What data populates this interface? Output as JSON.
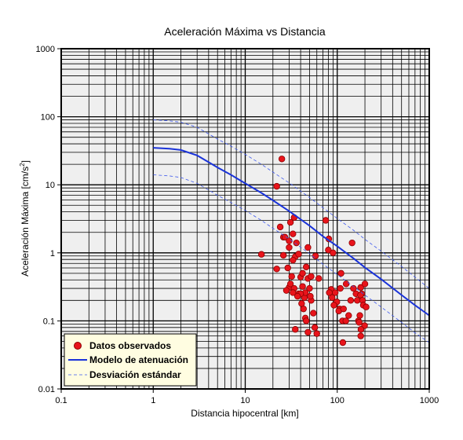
{
  "chart_data": {
    "type": "scatter",
    "title": "Aceleración Máxima vs Distancia",
    "xlabel": "Distancia hipocentral [km]",
    "ylabel": "Aceleración Máxima [cm/s",
    "ylabel_sup": "2",
    "ylabel_end": "]",
    "xscale": "log",
    "yscale": "log",
    "xlim": [
      0.1,
      1000
    ],
    "ylim": [
      0.01,
      1000
    ],
    "grid": true,
    "legend_position": "bottom-left",
    "x_tick_labels": [
      "0.1",
      "1",
      "10",
      "100",
      "1000"
    ],
    "y_tick_labels": [
      "0.01",
      "0.1",
      "1",
      "10",
      "100",
      "1000"
    ],
    "colors": {
      "plot_background": "#efefef",
      "grid": "#000000",
      "points": "#e8141b",
      "point_edge": "#8b0000",
      "model": "#1a33d9",
      "std": "#3d58ee",
      "legend_background": "#fffde1"
    },
    "series": [
      {
        "name": "Datos observados",
        "kind": "points",
        "x": [
          25,
          22,
          34,
          31,
          33,
          24,
          26,
          27,
          30,
          36,
          30,
          26,
          15,
          35,
          38,
          48,
          58,
          22,
          33,
          29,
          32,
          40,
          48,
          52,
          63,
          46,
          42,
          30,
          31,
          34,
          42,
          50,
          28,
          38,
          44,
          52,
          45,
          33,
          40,
          37,
          51,
          55,
          43,
          45,
          46,
          35,
          57,
          60,
          48,
          41,
          75,
          81,
          80,
          90,
          86,
          95,
          82,
          88,
          99,
          92,
          106,
          104,
          117,
          114,
          133,
          124,
          145,
          110,
          125,
          108,
          160,
          150,
          140,
          165,
          180,
          185,
          179,
          200,
          188,
          192,
          206,
          176,
          170,
          198,
          173,
          181,
          180,
          115
        ],
        "y": [
          24,
          9.5,
          3.3,
          2.8,
          1.9,
          2.4,
          1.7,
          1.7,
          1.5,
          1.4,
          1.2,
          0.92,
          0.95,
          0.88,
          0.96,
          1.2,
          0.9,
          0.58,
          0.78,
          0.6,
          0.45,
          0.44,
          0.42,
          0.45,
          0.42,
          0.62,
          0.5,
          0.31,
          0.35,
          0.3,
          0.32,
          0.3,
          0.28,
          0.25,
          0.22,
          0.2,
          0.26,
          0.26,
          0.25,
          0.23,
          0.23,
          0.13,
          0.15,
          0.11,
          0.1,
          0.075,
          0.08,
          0.065,
          0.068,
          0.18,
          3.0,
          1.6,
          1.1,
          1.0,
          0.29,
          0.26,
          0.26,
          0.22,
          0.19,
          0.17,
          0.15,
          0.14,
          0.15,
          0.1,
          0.12,
          0.1,
          1.4,
          0.5,
          0.35,
          0.3,
          0.25,
          0.3,
          0.2,
          0.2,
          0.31,
          0.25,
          0.24,
          0.35,
          0.2,
          0.17,
          0.16,
          0.12,
          0.1,
          0.085,
          0.095,
          0.075,
          0.06,
          0.048
        ]
      },
      {
        "name": "Modelo de atenuación",
        "kind": "line",
        "x": [
          1,
          1.5,
          2,
          3,
          4,
          5,
          7,
          10,
          15,
          20,
          30,
          50,
          70,
          100,
          150,
          200,
          300,
          500,
          700,
          1000
        ],
        "y": [
          35,
          34,
          32.5,
          27,
          21.5,
          18,
          14,
          10.5,
          7.6,
          5.9,
          4.1,
          2.5,
          1.75,
          1.25,
          0.83,
          0.61,
          0.41,
          0.24,
          0.17,
          0.12
        ]
      },
      {
        "name": "Desviación estándar",
        "kind": "dashed",
        "x": [
          1,
          1.5,
          2,
          3,
          4,
          5,
          7,
          10,
          15,
          20,
          30,
          50,
          70,
          100,
          150,
          200,
          300,
          500,
          700,
          1000
        ],
        "y": [
          90,
          87,
          83,
          70,
          56,
          47,
          37,
          28,
          20,
          15.4,
          10.7,
          6.5,
          4.6,
          3.2,
          2.15,
          1.58,
          1.06,
          0.63,
          0.44,
          0.3
        ]
      },
      {
        "kind": "dashed",
        "x": [
          1,
          1.5,
          2,
          3,
          4,
          5,
          7,
          10,
          15,
          20,
          30,
          50,
          70,
          100,
          150,
          200,
          300,
          500,
          700,
          1000
        ],
        "y": [
          14,
          13.5,
          12.8,
          10.5,
          8.4,
          7.0,
          5.5,
          4.2,
          3.0,
          2.3,
          1.6,
          0.97,
          0.68,
          0.48,
          0.32,
          0.24,
          0.16,
          0.095,
          0.067,
          0.048
        ]
      }
    ]
  }
}
